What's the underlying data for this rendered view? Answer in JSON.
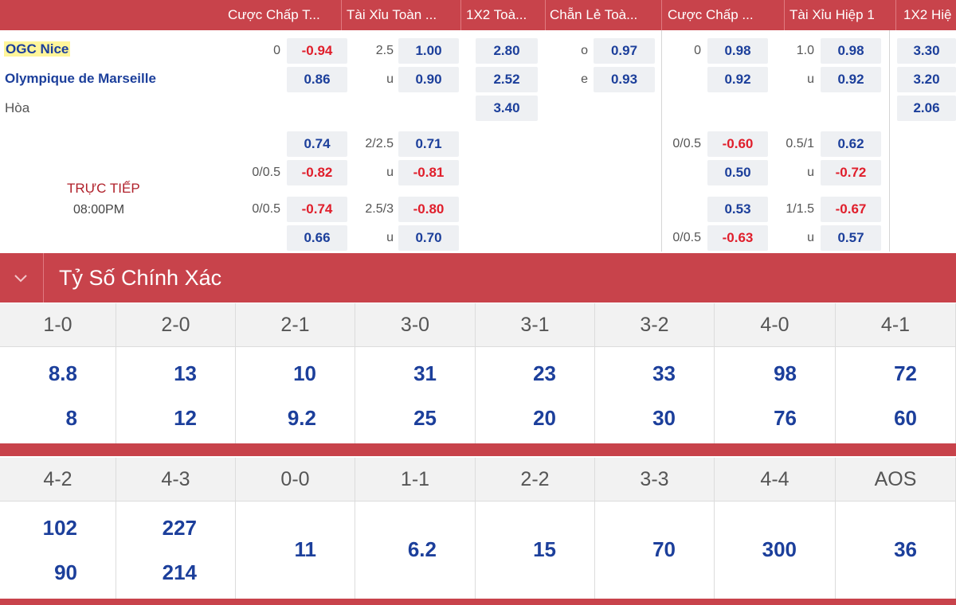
{
  "headers": [
    "Cược Chấp T...",
    "Tài Xỉu Toàn ...",
    "1X2 Toà...",
    "Chẵn Lẻ Toà...",
    "Cược Chấp ...",
    "Tài Xỉu Hiệp 1",
    "1X2 Hiệ"
  ],
  "match": {
    "home": "OGC Nice",
    "away": "Olympique de Marseille",
    "draw": "Hòa",
    "status": "TRỰC TIẾP",
    "time": "08:00PM"
  },
  "main_rows": {
    "ft_handicap": {
      "line": "0",
      "home": "-0.94",
      "away": "0.86"
    },
    "ft_over_under": {
      "line": "2.5",
      "home": "1.00",
      "under_label": "u",
      "away": "0.90"
    },
    "ft_1x2": {
      "home": "2.80",
      "away": "2.52",
      "draw": "3.40"
    },
    "ft_odd_even": {
      "odd_label": "o",
      "odd": "0.97",
      "even_label": "e",
      "even": "0.93"
    },
    "h1_handicap": {
      "line": "0",
      "home": "0.98",
      "away": "0.92"
    },
    "h1_over_under": {
      "line": "1.0",
      "home": "0.98",
      "under_label": "u",
      "away": "0.92"
    },
    "h1_1x2": {
      "home": "3.30",
      "away": "3.20",
      "draw": "2.06"
    }
  },
  "alt_lines": {
    "ft_handicap": [
      {
        "line": "",
        "value": "0.74"
      },
      {
        "line": "0/0.5",
        "value": "-0.82"
      },
      {
        "line": "0/0.5",
        "value": "-0.74"
      },
      {
        "line": "",
        "value": "0.66"
      }
    ],
    "ft_over_under": [
      {
        "line": "2/2.5",
        "value": "0.71"
      },
      {
        "line": "u",
        "value": "-0.81"
      },
      {
        "line": "2.5/3",
        "value": "-0.80"
      },
      {
        "line": "u",
        "value": "0.70"
      }
    ],
    "h1_handicap": [
      {
        "line": "0/0.5",
        "value": "-0.60"
      },
      {
        "line": "",
        "value": "0.50"
      },
      {
        "line": "",
        "value": "0.53"
      },
      {
        "line": "0/0.5",
        "value": "-0.63"
      }
    ],
    "h1_over_under": [
      {
        "line": "0.5/1",
        "value": "0.62"
      },
      {
        "line": "u",
        "value": "-0.72"
      },
      {
        "line": "1/1.5",
        "value": "-0.67"
      },
      {
        "line": "u",
        "value": "0.57"
      }
    ]
  },
  "correct_score": {
    "title": "Tỷ Số Chính Xác",
    "row1": [
      {
        "score": "1-0",
        "top": "8.8",
        "bottom": "8"
      },
      {
        "score": "2-0",
        "top": "13",
        "bottom": "12"
      },
      {
        "score": "2-1",
        "top": "10",
        "bottom": "9.2"
      },
      {
        "score": "3-0",
        "top": "31",
        "bottom": "25"
      },
      {
        "score": "3-1",
        "top": "23",
        "bottom": "20"
      },
      {
        "score": "3-2",
        "top": "33",
        "bottom": "30"
      },
      {
        "score": "4-0",
        "top": "98",
        "bottom": "76"
      },
      {
        "score": "4-1",
        "top": "72",
        "bottom": "60"
      }
    ],
    "row2": [
      {
        "score": "4-2",
        "top": "102",
        "bottom": "90"
      },
      {
        "score": "4-3",
        "top": "227",
        "bottom": "214"
      },
      {
        "score": "0-0",
        "single": "11"
      },
      {
        "score": "1-1",
        "single": "6.2"
      },
      {
        "score": "2-2",
        "single": "15"
      },
      {
        "score": "3-3",
        "single": "70"
      },
      {
        "score": "4-4",
        "single": "300"
      },
      {
        "score": "AOS",
        "single": "36"
      }
    ]
  },
  "colors": {
    "brand": "#c8434b",
    "odds_positive": "#1c3f9b",
    "odds_negative": "#e01e2b",
    "odds_bg": "#eef0f3",
    "highlight": "#fff59a"
  },
  "icons": {
    "section_toggle": "chevron-down-icon"
  }
}
